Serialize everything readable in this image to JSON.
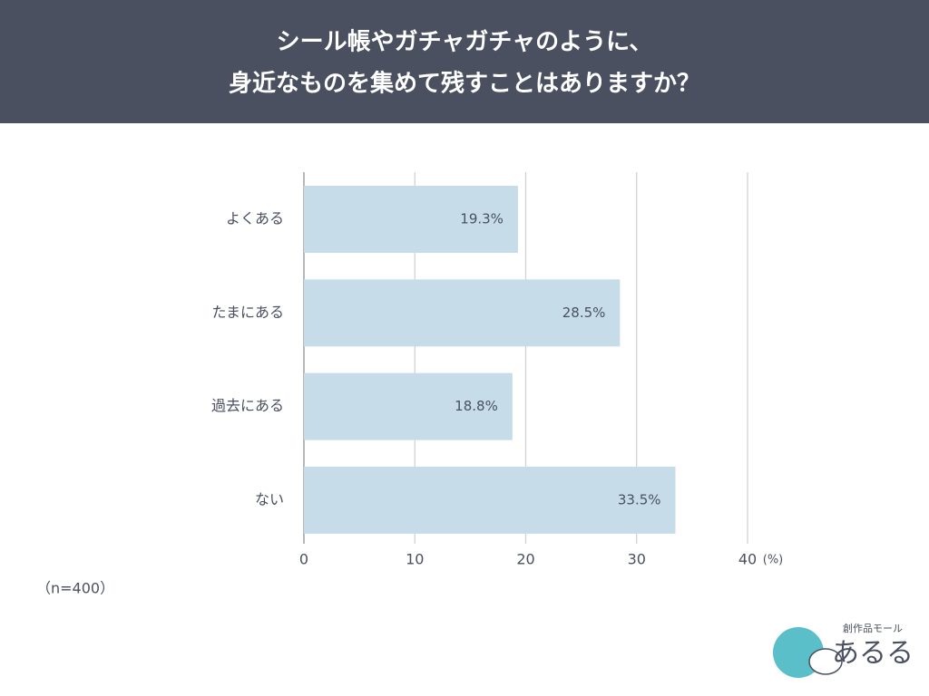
{
  "chart_data": {
    "type": "barh",
    "title": [
      "シール帳やガチャガチャのように、",
      "身近なものを集めて残すことはありますか？"
    ],
    "categories": [
      "よくある",
      "たまにある",
      "過去にある",
      "ない"
    ],
    "values": [
      19.3,
      28.5,
      18.8,
      33.5
    ],
    "value_labels": [
      "19.3%",
      "28.5%",
      "18.8%",
      "33.5%"
    ],
    "color": "#c6dde9",
    "xlim": [
      0,
      40
    ],
    "xticks": [
      0,
      10,
      20,
      30,
      40
    ],
    "grid": true,
    "unit_label": "(%)",
    "note": "（n=400）",
    "logo_tagline": "創作品モール",
    "logo_name": "あるる"
  }
}
